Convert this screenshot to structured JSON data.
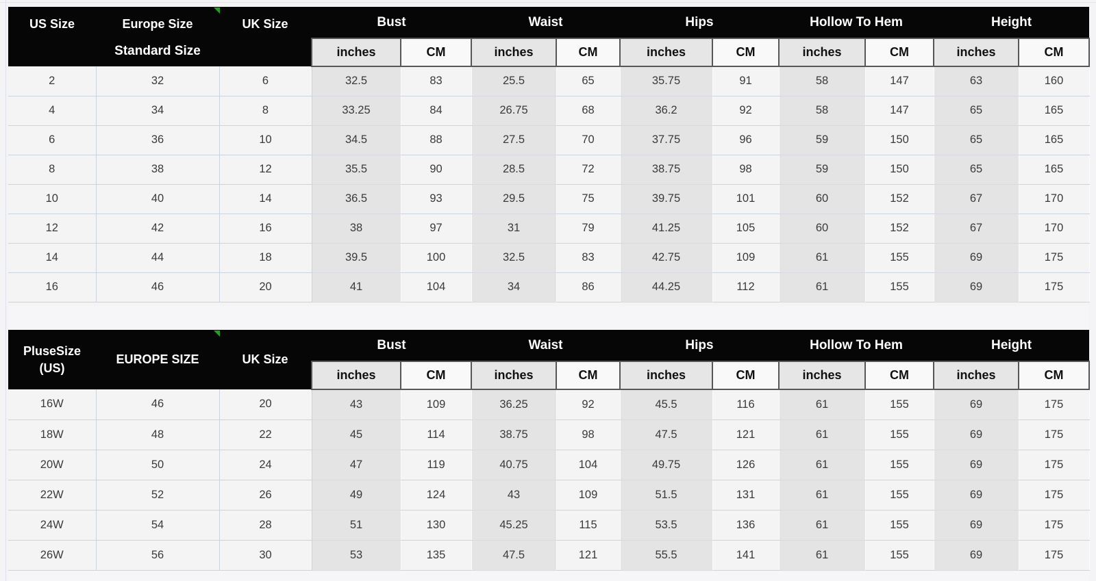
{
  "colors": {
    "header_bg": "#060606",
    "header_text": "#ffffff",
    "unit_inches_bg": "#e6e6e6",
    "unit_cm_bg": "#f9f9f9",
    "row_bg": "#f4f4f5",
    "inches_column_bg": "#e4e4e5",
    "grid_line": "#ccd3e0",
    "marker_green": "#21a121"
  },
  "chart_data": [
    {
      "type": "table",
      "size_column_headers": [
        [
          "US Size"
        ],
        [
          "Europe Size",
          "Standard Size"
        ],
        [
          "UK Size"
        ]
      ],
      "measure_groups": [
        "Bust",
        "Waist",
        "Hips",
        "Hollow To Hem",
        "Height"
      ],
      "unit_headers": [
        "inches",
        "CM"
      ],
      "rows": [
        [
          "2",
          "32",
          "6",
          "32.5",
          "83",
          "25.5",
          "65",
          "35.75",
          "91",
          "58",
          "147",
          "63",
          "160"
        ],
        [
          "4",
          "34",
          "8",
          "33.25",
          "84",
          "26.75",
          "68",
          "36.2",
          "92",
          "58",
          "147",
          "65",
          "165"
        ],
        [
          "6",
          "36",
          "10",
          "34.5",
          "88",
          "27.5",
          "70",
          "37.75",
          "96",
          "59",
          "150",
          "65",
          "165"
        ],
        [
          "8",
          "38",
          "12",
          "35.5",
          "90",
          "28.5",
          "72",
          "38.75",
          "98",
          "59",
          "150",
          "65",
          "165"
        ],
        [
          "10",
          "40",
          "14",
          "36.5",
          "93",
          "29.5",
          "75",
          "39.75",
          "101",
          "60",
          "152",
          "67",
          "170"
        ],
        [
          "12",
          "42",
          "16",
          "38",
          "97",
          "31",
          "79",
          "41.25",
          "105",
          "60",
          "152",
          "67",
          "170"
        ],
        [
          "14",
          "44",
          "18",
          "39.5",
          "100",
          "32.5",
          "83",
          "42.75",
          "109",
          "61",
          "155",
          "69",
          "175"
        ],
        [
          "16",
          "46",
          "20",
          "41",
          "104",
          "34",
          "86",
          "44.25",
          "112",
          "61",
          "155",
          "69",
          "175"
        ]
      ]
    },
    {
      "type": "table",
      "size_column_headers": [
        [
          "PluseSize",
          "(US)"
        ],
        [
          "EUROPE SIZE"
        ],
        [
          "UK Size"
        ]
      ],
      "measure_groups": [
        "Bust",
        "Waist",
        "Hips",
        "Hollow To Hem",
        "Height"
      ],
      "unit_headers": [
        "inches",
        "CM"
      ],
      "rows": [
        [
          "16W",
          "46",
          "20",
          "43",
          "109",
          "36.25",
          "92",
          "45.5",
          "116",
          "61",
          "155",
          "69",
          "175"
        ],
        [
          "18W",
          "48",
          "22",
          "45",
          "114",
          "38.75",
          "98",
          "47.5",
          "121",
          "61",
          "155",
          "69",
          "175"
        ],
        [
          "20W",
          "50",
          "24",
          "47",
          "119",
          "40.75",
          "104",
          "49.75",
          "126",
          "61",
          "155",
          "69",
          "175"
        ],
        [
          "22W",
          "52",
          "26",
          "49",
          "124",
          "43",
          "109",
          "51.5",
          "131",
          "61",
          "155",
          "69",
          "175"
        ],
        [
          "24W",
          "54",
          "28",
          "51",
          "130",
          "45.25",
          "115",
          "53.5",
          "136",
          "61",
          "155",
          "69",
          "175"
        ],
        [
          "26W",
          "56",
          "30",
          "53",
          "135",
          "47.5",
          "121",
          "55.5",
          "141",
          "61",
          "155",
          "69",
          "175"
        ]
      ]
    }
  ]
}
